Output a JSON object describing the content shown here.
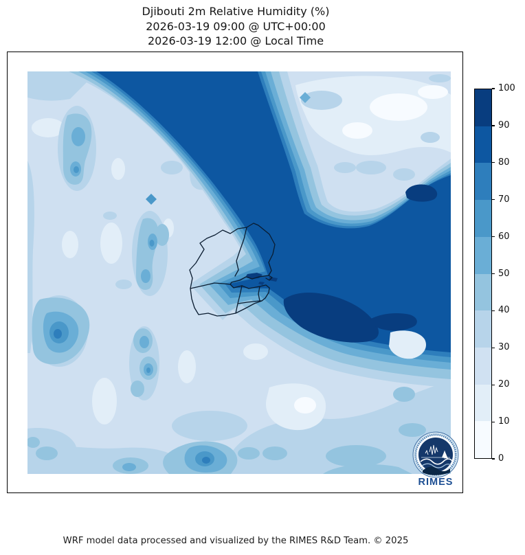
{
  "title": {
    "line1": "Djibouti 2m Relative Humidity (%)",
    "line2": "2026-03-19 09:00 @ UTC+00:00",
    "line3": "2026-03-19 12:00 @ Local Time"
  },
  "footer": {
    "credit": "WRF model data processed and visualized by the RIMES R&D Team. © 2025"
  },
  "logo": {
    "text": "RIMES"
  },
  "colorbar": {
    "min": 0,
    "max": 100,
    "tick_step": 10,
    "ticks": [
      0,
      10,
      20,
      30,
      40,
      50,
      60,
      70,
      80,
      90,
      100
    ],
    "colors_low_to_high": [
      "#f7fbff",
      "#e2eef8",
      "#d0e1f2",
      "#b7d4ea",
      "#94c4df",
      "#6aaed6",
      "#4a98c9",
      "#2e7ebc",
      "#0d57a1",
      "#083d7f"
    ]
  },
  "chart_data": {
    "type": "filled_contour_map",
    "title": "Djibouti 2m Relative Humidity (%)",
    "variable": "2m Relative Humidity",
    "units": "%",
    "valid_time_utc": "2026-03-19 09:00 @ UTC+00:00",
    "valid_time_local": "2026-03-19 12:00 @ Local Time",
    "region": "Djibouti and surrounding area (Gulf of Tadjoura / Gulf of Aden visible as high-humidity water)",
    "colormap": "Blues",
    "levels": [
      0,
      10,
      20,
      30,
      40,
      50,
      60,
      70,
      80,
      90,
      100
    ],
    "legend_position": "right vertical colorbar, ticks every 10 from 0 to 100",
    "features": [
      "High-humidity band (80-90%) enters at top-center and runs diagonally southeast to the Gulf of Tadjoura, then spreads east to the right edge (sea area)",
      "Maximum humidity core (90-100%) just southeast of Djibouti coast around image center-right, with smaller 90-100% patches along the right edge and at the gulf mouth",
      "Very dry pocket (0-20%) in the upper-right interior ('bay' enclosed by the moist band)",
      "Northwest and west interior mostly 20-40% with scattered moister blobs reaching 50-80% in small cores",
      "South-center below the moist band dries quickly through 70-40% fringes to 10-30% pockets, with 30-50% across the bottom"
    ],
    "overlays": [
      "Djibouti national and regional administrative boundaries (black outline, center of map)",
      "RIMES circular logo at bottom-right"
    ]
  }
}
